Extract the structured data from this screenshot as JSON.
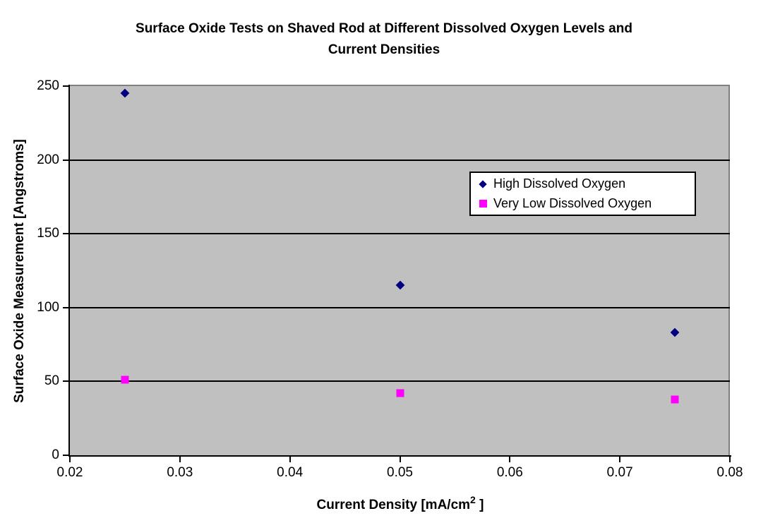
{
  "chart": {
    "title_lines": [
      "Surface Oxide Tests on Shaved Rod at Different Dissolved Oxygen Levels and",
      "Current Densities"
    ],
    "x_axis": {
      "title_prefix": "Current Density [mA/cm",
      "title_sup": "2",
      "title_suffix": " ]",
      "ticks": [
        "0.02",
        "0.03",
        "0.04",
        "0.05",
        "0.06",
        "0.07",
        "0.08"
      ]
    },
    "y_axis": {
      "title": "Surface Oxide Measurement [Angstroms]",
      "ticks": [
        "0",
        "50",
        "100",
        "150",
        "200",
        "250"
      ]
    },
    "legend": [
      {
        "label": "High Dissolved Oxygen",
        "marker": "diamond",
        "color": "#000080"
      },
      {
        "label": "Very Low Dissolved Oxygen",
        "marker": "square",
        "color": "#FF00FF"
      }
    ],
    "colors": {
      "plot_background": "#C0C0C0",
      "plot_border": "#808080",
      "gridline": "#000000",
      "axis": "#000000",
      "high_series": "#000080",
      "low_series": "#FF00FF"
    }
  },
  "chart_data": {
    "type": "scatter",
    "title": "Surface Oxide Tests on Shaved Rod at Different Dissolved Oxygen Levels and Current Densities",
    "xlabel": "Current Density [mA/cm2 ]",
    "ylabel": "Surface Oxide Measurement [Angstroms]",
    "xlim": [
      0.02,
      0.08
    ],
    "ylim": [
      0,
      250
    ],
    "x_tick_step": 0.01,
    "y_tick_step": 50,
    "grid": "horizontal",
    "legend_position": "inside-right",
    "series": [
      {
        "name": "High Dissolved Oxygen",
        "marker": "diamond",
        "color": "#000080",
        "points": [
          [
            0.025,
            245
          ],
          [
            0.05,
            115
          ],
          [
            0.075,
            83
          ]
        ]
      },
      {
        "name": "Very Low Dissolved Oxygen",
        "marker": "square",
        "color": "#FF00FF",
        "points": [
          [
            0.025,
            51
          ],
          [
            0.05,
            42
          ],
          [
            0.075,
            38
          ]
        ]
      }
    ]
  }
}
